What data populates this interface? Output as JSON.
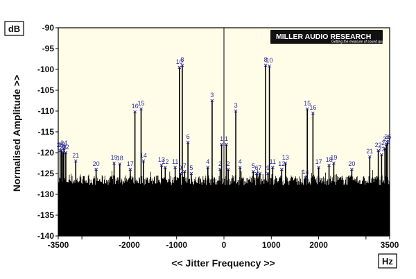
{
  "chart_data": {
    "type": "line",
    "title": "",
    "xlabel": "<< Jitter Frequency >>",
    "ylabel": "Normalised Amplitude >>",
    "x_unit": "Hz",
    "y_unit": "dB",
    "xlim": [
      -3500,
      3500
    ],
    "ylim": [
      -140,
      -90
    ],
    "x_ticks": [
      -3500,
      -2000,
      -1000,
      0,
      1000,
      2000,
      3500
    ],
    "x_tick_labels": [
      "-3500",
      "-2000",
      "-1000",
      "0",
      "1000",
      "2000",
      "3500"
    ],
    "y_ticks": [
      -90,
      -95,
      -100,
      -105,
      -110,
      -115,
      -120,
      -125,
      -130,
      -135,
      -140
    ],
    "y_tick_labels": [
      "-90",
      "-95",
      "-100",
      "-105",
      "-110",
      "-115",
      "-120",
      "-125",
      "-130",
      "-135",
      "-140"
    ],
    "grid": false,
    "center_line_x": 0,
    "noise_floor_db": -128,
    "line_color": "#000000",
    "plot_background": "#fffce8",
    "marker_color": "#2a2aa0",
    "logo": {
      "text": "MILLER AUDIO RESEARCH",
      "tagline": "Getting the measure of sound quality"
    },
    "peaks": [
      {
        "x": -3460,
        "y": -119.5,
        "label": "25"
      },
      {
        "x": -3430,
        "y": -119.5,
        "label": "26"
      },
      {
        "x": -3400,
        "y": -120.0,
        "label": "23"
      },
      {
        "x": -3340,
        "y": -120.0,
        "label": "22"
      },
      {
        "x": -3380,
        "y": -119.0,
        "label": "24"
      },
      {
        "x": -3130,
        "y": -122.0,
        "label": "21"
      },
      {
        "x": -2700,
        "y": -124.0,
        "label": "20"
      },
      {
        "x": -2320,
        "y": -122.5,
        "label": "19"
      },
      {
        "x": -2200,
        "y": -122.7,
        "label": "18"
      },
      {
        "x": -1980,
        "y": -124.0,
        "label": "17"
      },
      {
        "x": -1880,
        "y": -110.2,
        "label": "16"
      },
      {
        "x": -1750,
        "y": -109.5,
        "label": "15"
      },
      {
        "x": -1700,
        "y": -122.0,
        "label": "14"
      },
      {
        "x": -1320,
        "y": -123.0,
        "label": "13"
      },
      {
        "x": -1240,
        "y": -123.5,
        "label": "12"
      },
      {
        "x": -1030,
        "y": -123.5,
        "label": "11"
      },
      {
        "x": -940,
        "y": -99.5,
        "label": "10"
      },
      {
        "x": -880,
        "y": -99.0,
        "label": "8"
      },
      {
        "x": -920,
        "y": -125.0,
        "label": "9"
      },
      {
        "x": -830,
        "y": -124.5,
        "label": "7"
      },
      {
        "x": -760,
        "y": -117.5,
        "label": "6"
      },
      {
        "x": -690,
        "y": -125.0,
        "label": "5"
      },
      {
        "x": -340,
        "y": -123.5,
        "label": "4"
      },
      {
        "x": -250,
        "y": -107.5,
        "label": "3"
      },
      {
        "x": -80,
        "y": -124.0,
        "label": "2"
      },
      {
        "x": -50,
        "y": -118.0,
        "label": "1"
      },
      {
        "x": 50,
        "y": -118.0,
        "label": "1"
      },
      {
        "x": 90,
        "y": -124.0,
        "label": "2"
      },
      {
        "x": 250,
        "y": -110.0,
        "label": "3"
      },
      {
        "x": 340,
        "y": -123.5,
        "label": "4"
      },
      {
        "x": 620,
        "y": -124.5,
        "label": "5"
      },
      {
        "x": 690,
        "y": -125.0,
        "label": "6"
      },
      {
        "x": 760,
        "y": -125.0,
        "label": "7"
      },
      {
        "x": 880,
        "y": -99.0,
        "label": "8"
      },
      {
        "x": 930,
        "y": -125.0,
        "label": "9"
      },
      {
        "x": 960,
        "y": -99.2,
        "label": "10"
      },
      {
        "x": 1030,
        "y": -123.5,
        "label": "11"
      },
      {
        "x": 1220,
        "y": -124.0,
        "label": "12"
      },
      {
        "x": 1300,
        "y": -122.5,
        "label": "13"
      },
      {
        "x": 1720,
        "y": -126.0,
        "label": "14"
      },
      {
        "x": 1760,
        "y": -109.5,
        "label": "15"
      },
      {
        "x": 1880,
        "y": -110.5,
        "label": "16"
      },
      {
        "x": 2000,
        "y": -123.5,
        "label": "17"
      },
      {
        "x": 2220,
        "y": -123.0,
        "label": "18"
      },
      {
        "x": 2320,
        "y": -122.5,
        "label": "19"
      },
      {
        "x": 2700,
        "y": -124.0,
        "label": "20"
      },
      {
        "x": 3080,
        "y": -121.0,
        "label": "21"
      },
      {
        "x": 3260,
        "y": -119.5,
        "label": "22"
      },
      {
        "x": 3330,
        "y": -120.5,
        "label": "23"
      },
      {
        "x": 3400,
        "y": -119.0,
        "label": "24"
      },
      {
        "x": 3430,
        "y": -118.0,
        "label": "25"
      },
      {
        "x": 3460,
        "y": -117.5,
        "label": "26"
      }
    ]
  }
}
